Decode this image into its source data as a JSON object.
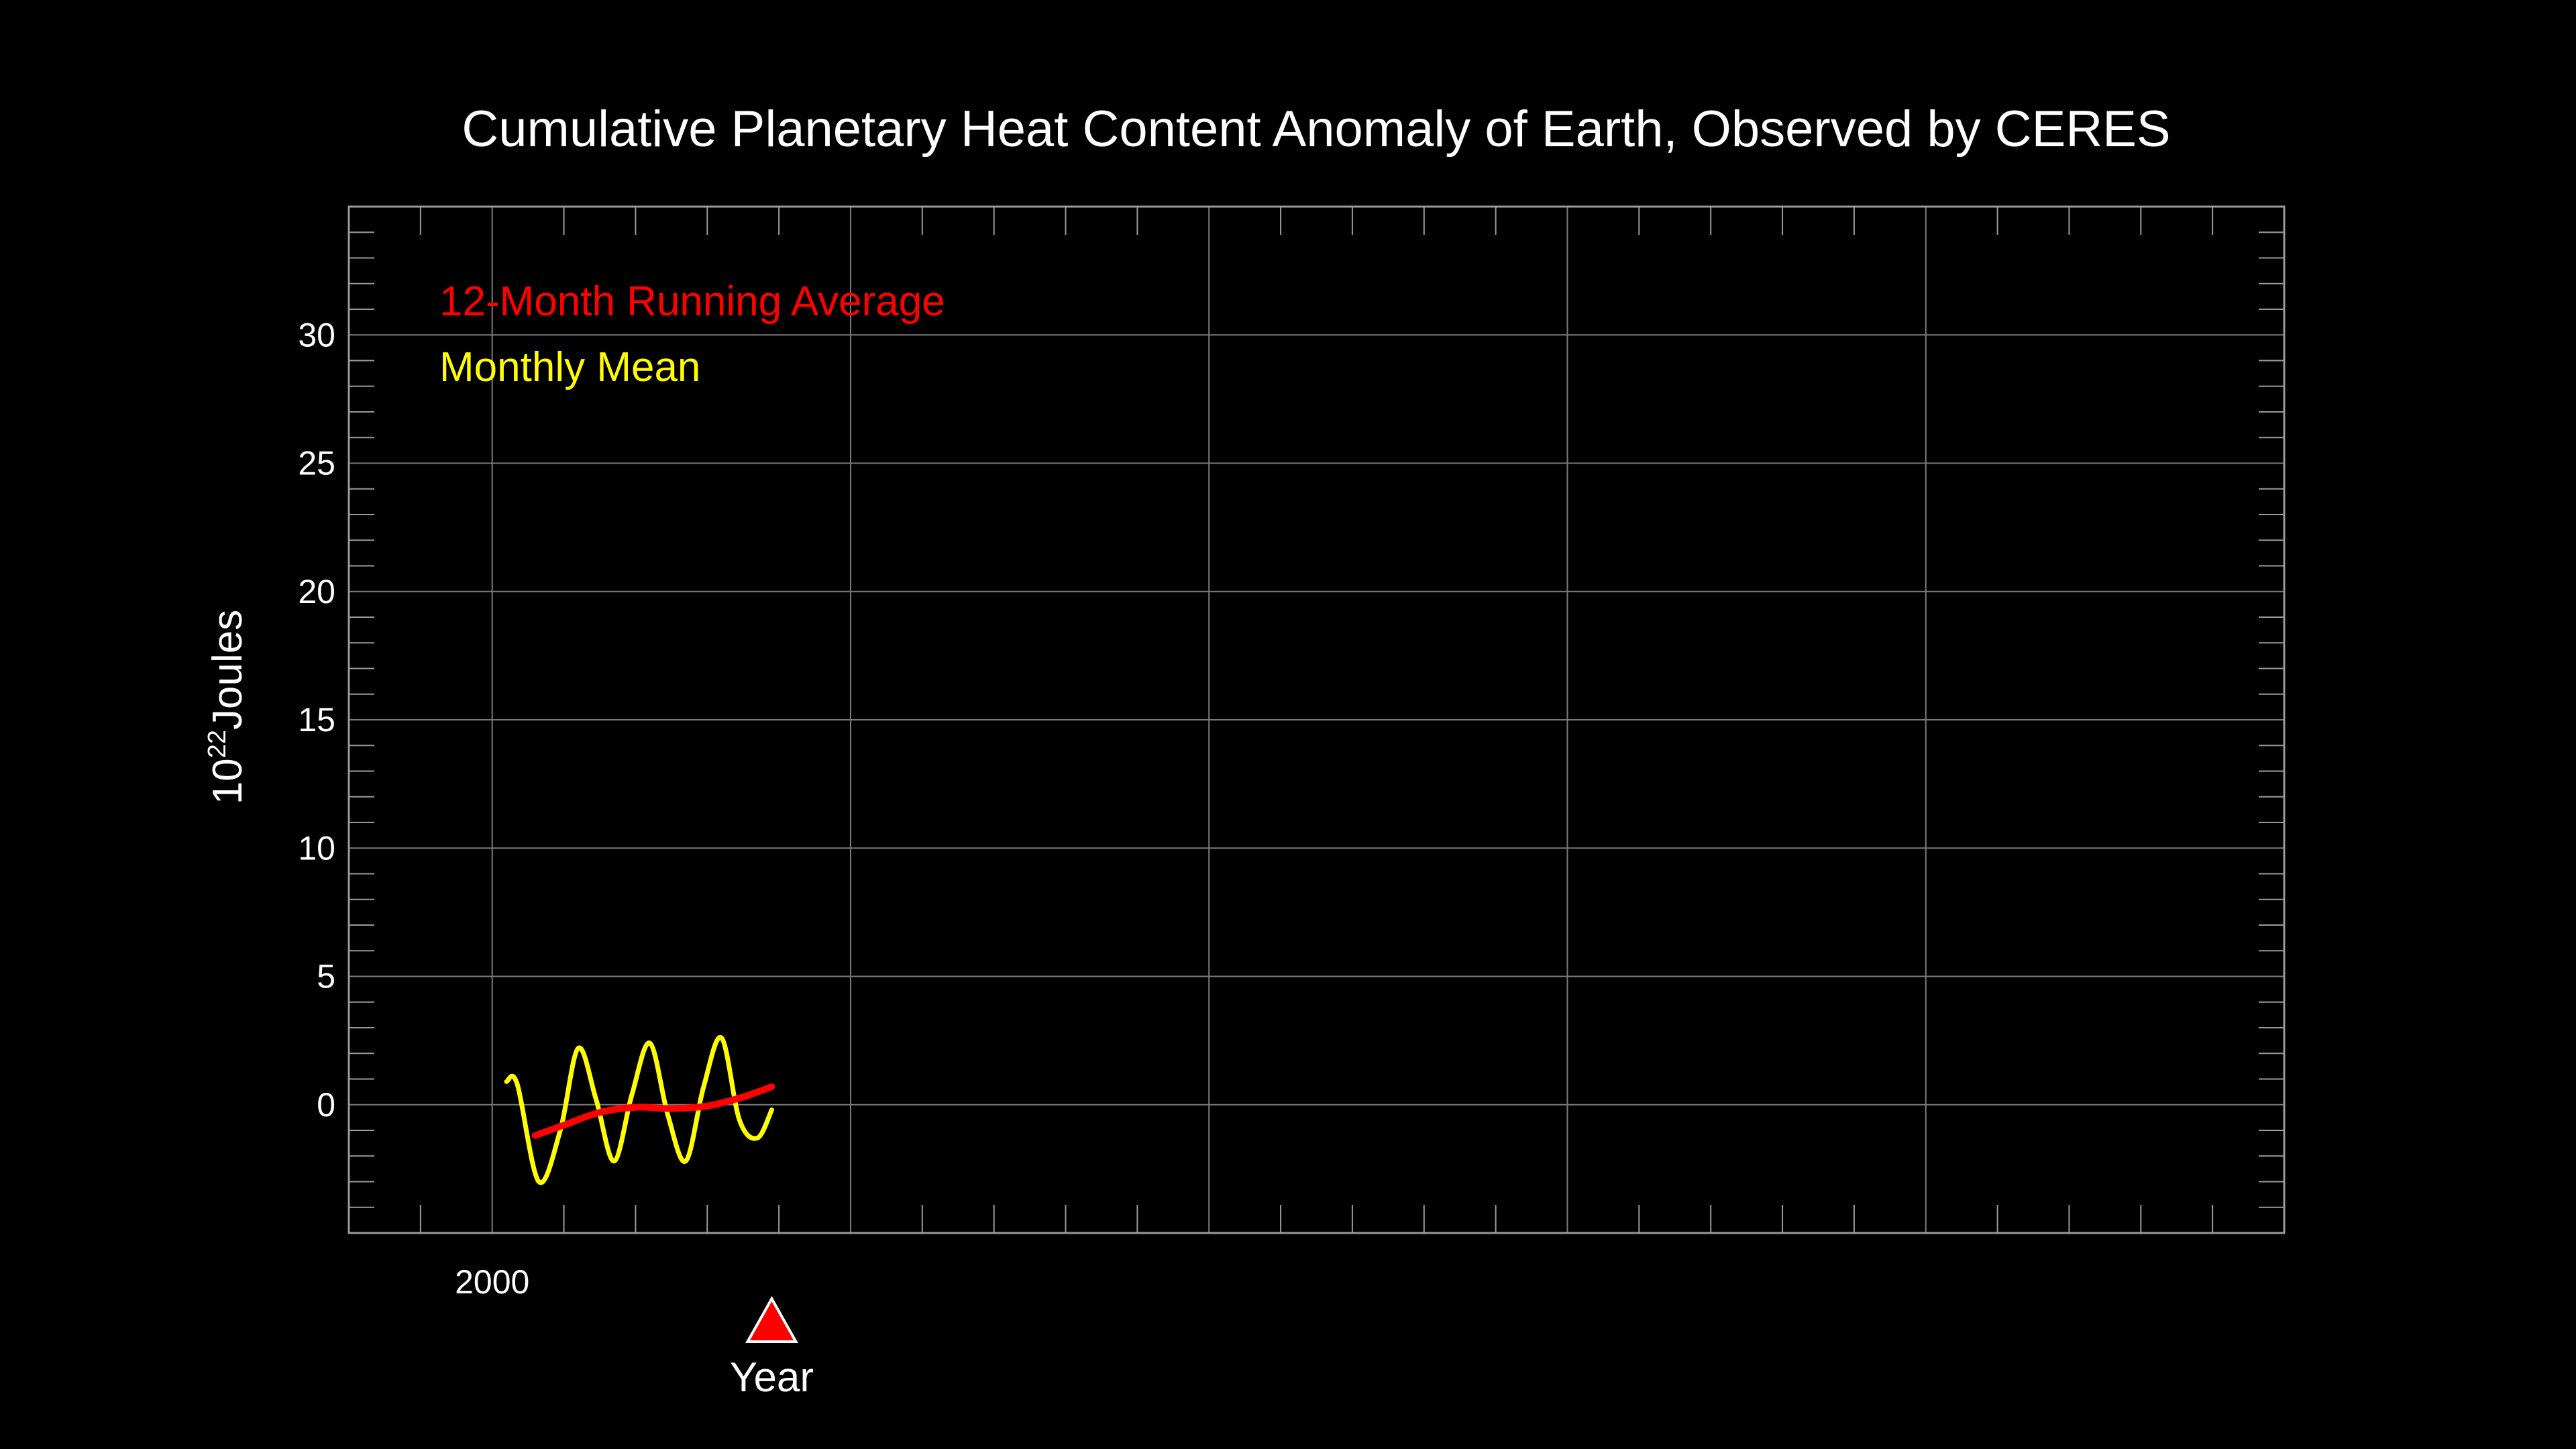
{
  "chart_data": {
    "type": "line",
    "title": "Cumulative Planetary Heat Content Anomaly of Earth, Observed by CERES",
    "xlabel": "Year",
    "ylabel_base": "10",
    "ylabel_exponent": "22",
    "ylabel_unit": "Joules",
    "xlim": [
      1998.0,
      2025.0
    ],
    "ylim": [
      -5,
      35
    ],
    "x_major_ticks": [
      2000,
      2005,
      2010,
      2015,
      2020,
      2025
    ],
    "x_tick_labels": [
      {
        "x": 2000,
        "label": "2000"
      }
    ],
    "y_major_ticks": [
      0,
      5,
      10,
      15,
      20,
      25,
      30
    ],
    "y_tick_labels": [
      "0",
      "5",
      "10",
      "15",
      "20",
      "25",
      "30"
    ],
    "grid": true,
    "legend_position": "top-left",
    "current_time_marker": {
      "x": 2003.9,
      "color": "#ff0000"
    },
    "series": [
      {
        "name": "12-Month Running Average",
        "color": "#ff0000",
        "x": [
          2000.6,
          2001.0,
          2001.5,
          2002.0,
          2002.5,
          2003.0,
          2003.5,
          2003.9
        ],
        "y": [
          -1.2,
          -0.8,
          -0.3,
          -0.1,
          -0.15,
          -0.05,
          0.3,
          0.7
        ]
      },
      {
        "name": "Monthly Mean",
        "color": "#ffff00",
        "x": [
          2000.2,
          2000.35,
          2000.65,
          2000.95,
          2001.2,
          2001.45,
          2001.7,
          2001.95,
          2002.2,
          2002.45,
          2002.7,
          2002.95,
          2003.2,
          2003.45,
          2003.7,
          2003.9
        ],
        "y": [
          0.9,
          0.8,
          -3.0,
          -1.0,
          2.2,
          0.2,
          -2.2,
          0.4,
          2.4,
          -0.4,
          -2.2,
          0.7,
          2.6,
          -0.6,
          -1.3,
          -0.2
        ]
      }
    ]
  }
}
